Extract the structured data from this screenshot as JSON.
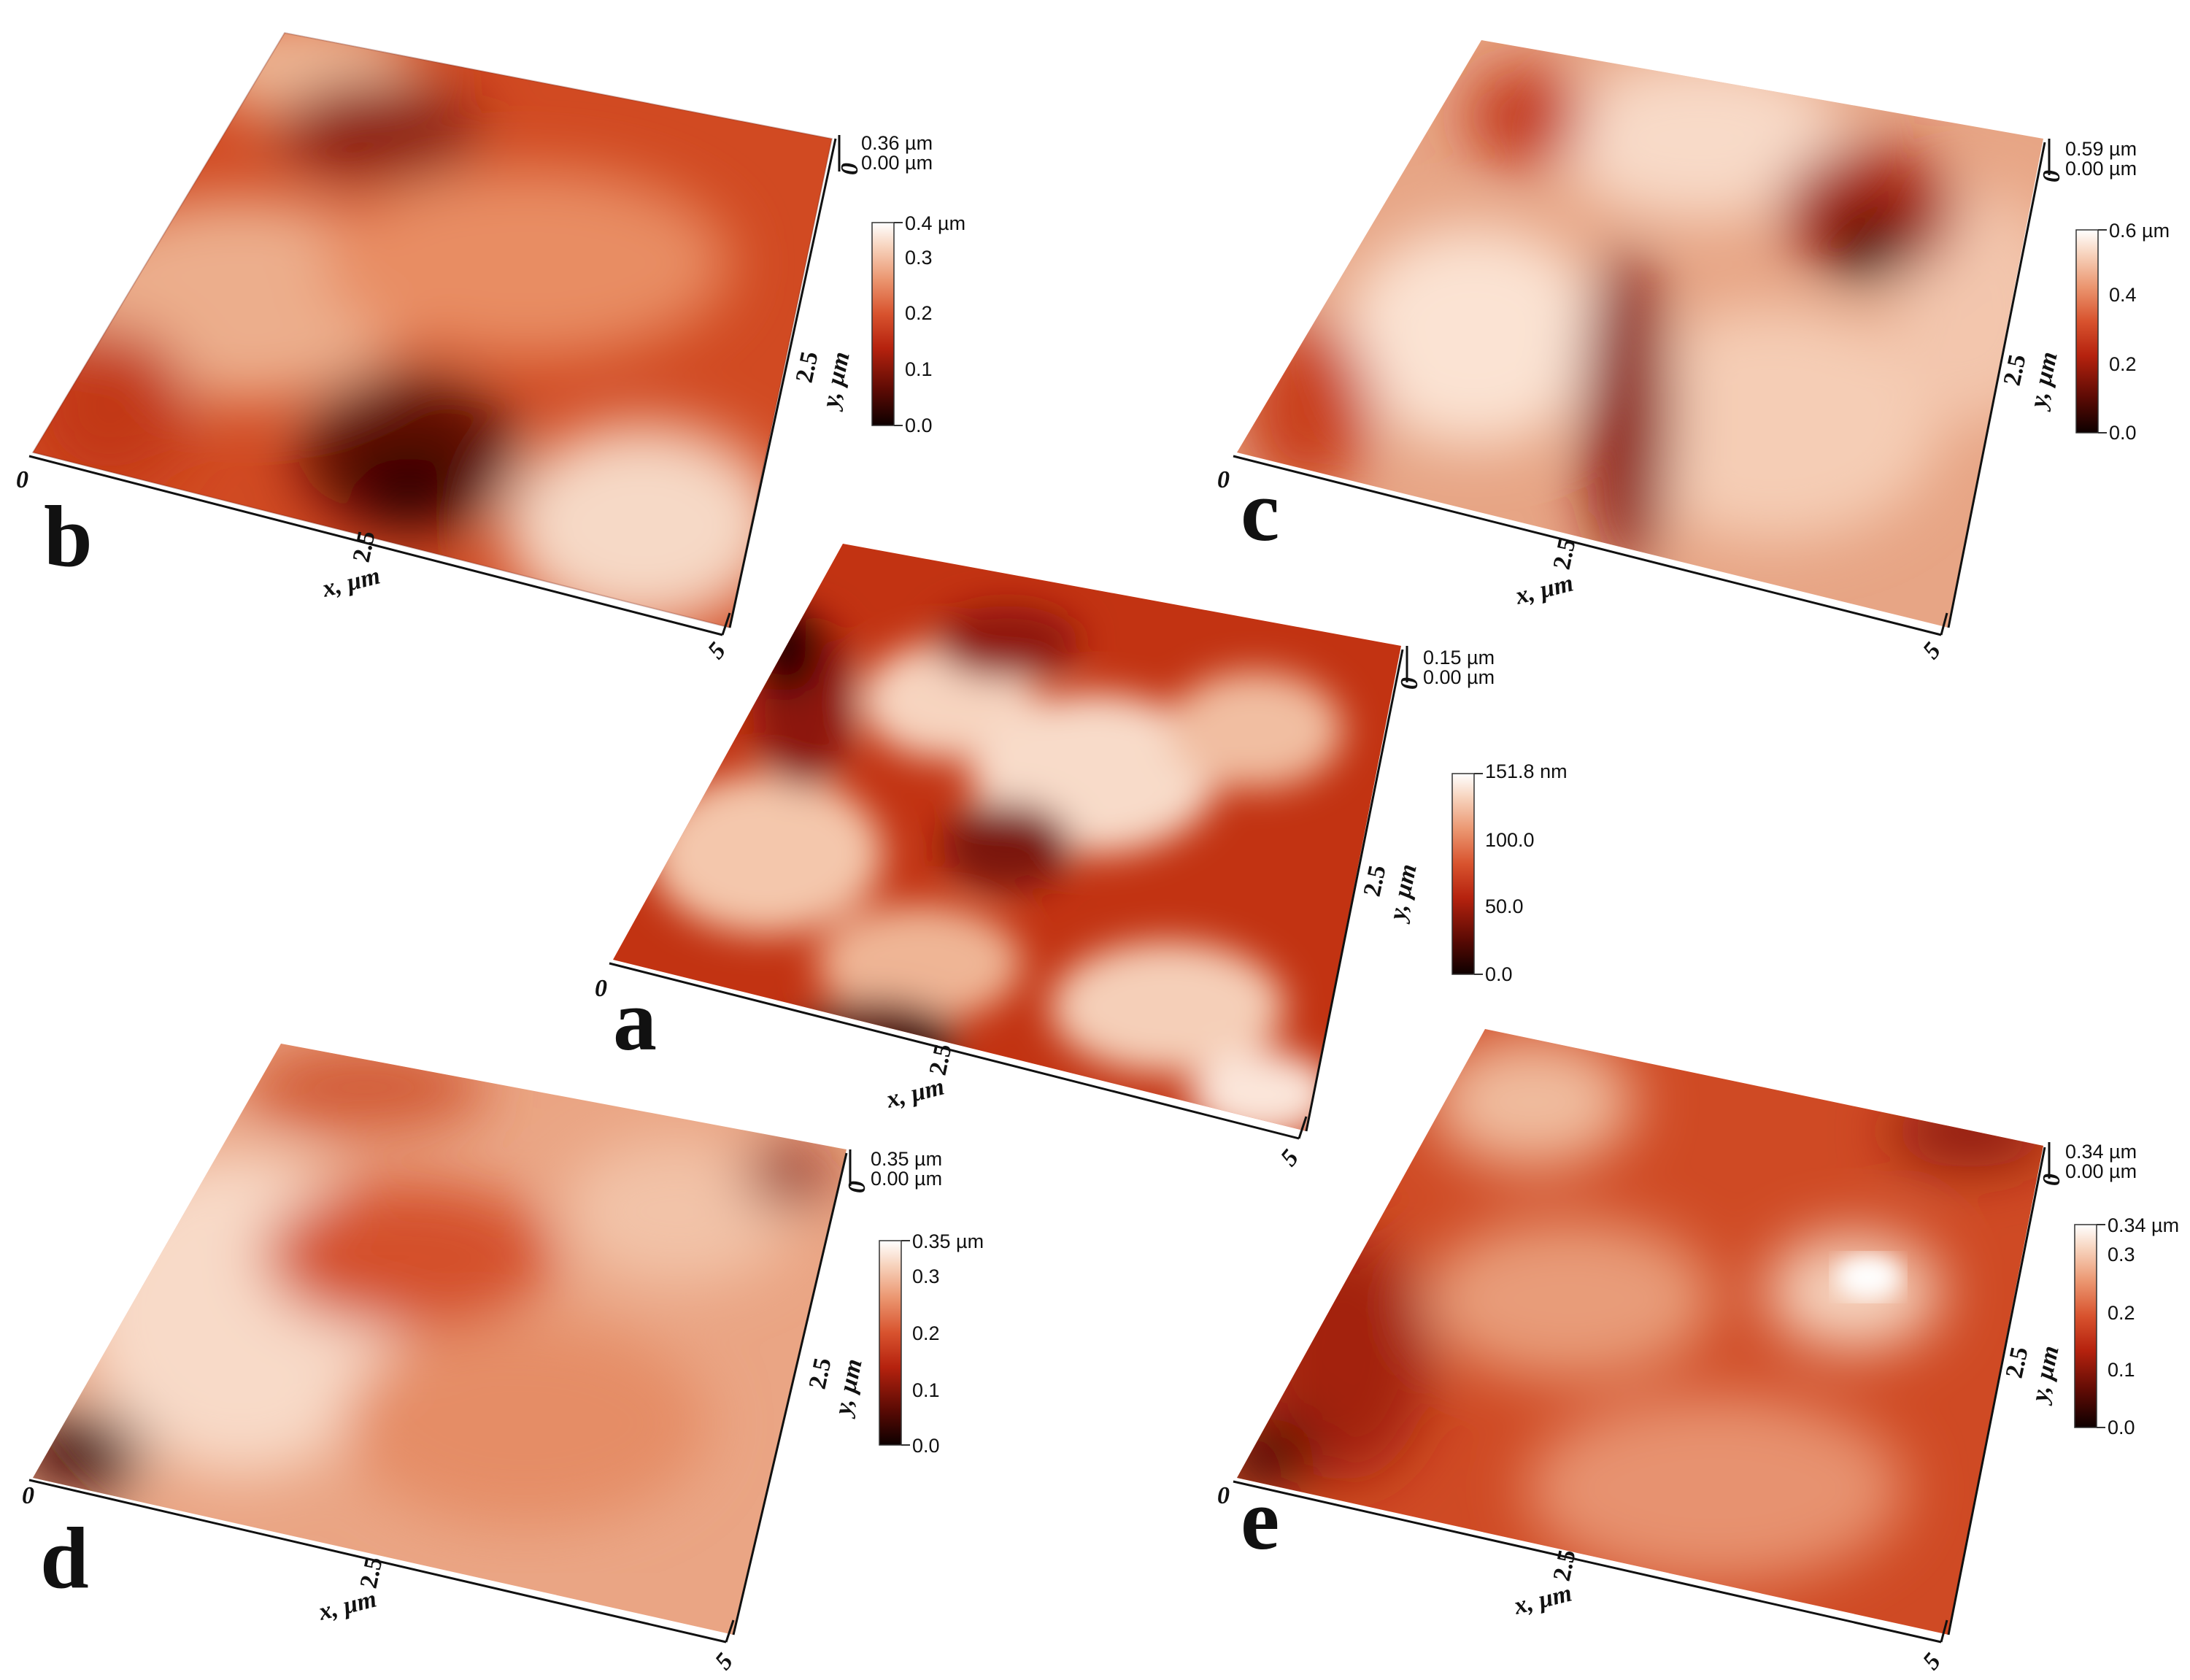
{
  "panels": [
    {
      "id": "a",
      "label": "a",
      "z_top": "0.15 µm",
      "z_bottom": "0.00 µm",
      "x_ticks": [
        "0",
        "2.5",
        "5"
      ],
      "x_axis": "x, µm",
      "y_ticks": [
        "0",
        "2.5"
      ],
      "y_axis": "y, µm",
      "colorbar_ticks": [
        "151.8 nm",
        "100.0",
        "50.0",
        "0.0"
      ]
    },
    {
      "id": "b",
      "label": "b",
      "z_top": "0.36 µm",
      "z_bottom": "0.00 µm",
      "x_ticks": [
        "0",
        "2.5",
        "5"
      ],
      "x_axis": "x, µm",
      "y_ticks": [
        "0",
        "2.5"
      ],
      "y_axis": "y, µm",
      "colorbar_ticks": [
        "0.4 µm",
        "0.3",
        "0.2",
        "0.1",
        "0.0"
      ]
    },
    {
      "id": "c",
      "label": "c",
      "z_top": "0.59 µm",
      "z_bottom": "0.00 µm",
      "x_ticks": [
        "0",
        "2.5",
        "5"
      ],
      "x_axis": "x, µm",
      "y_ticks": [
        "0",
        "2.5"
      ],
      "y_axis": "y, µm",
      "colorbar_ticks": [
        "0.6 µm",
        "0.4",
        "0.2",
        "0.0"
      ]
    },
    {
      "id": "d",
      "label": "d",
      "z_top": "0.35 µm",
      "z_bottom": "0.00 µm",
      "x_ticks": [
        "0",
        "2.5",
        "5"
      ],
      "x_axis": "x, µm",
      "y_ticks": [
        "0",
        "2.5"
      ],
      "y_axis": "y, µm",
      "colorbar_ticks": [
        "0.35 µm",
        "0.3",
        "0.2",
        "0.1",
        "0.0"
      ]
    },
    {
      "id": "e",
      "label": "e",
      "z_top": "0.34 µm",
      "z_bottom": "0.00 µm",
      "x_ticks": [
        "0",
        "2.5",
        "5"
      ],
      "x_axis": "x, µm",
      "y_ticks": [
        "0",
        "2.5"
      ],
      "y_axis": "y, µm",
      "colorbar_ticks": [
        "0.34 µm",
        "0.3",
        "0.2",
        "0.1",
        "0.0"
      ]
    }
  ],
  "colormap": [
    "#0d0000",
    "#5a0a04",
    "#b5220e",
    "#d8532e",
    "#eb9670",
    "#f7d3bd",
    "#ffffff"
  ]
}
